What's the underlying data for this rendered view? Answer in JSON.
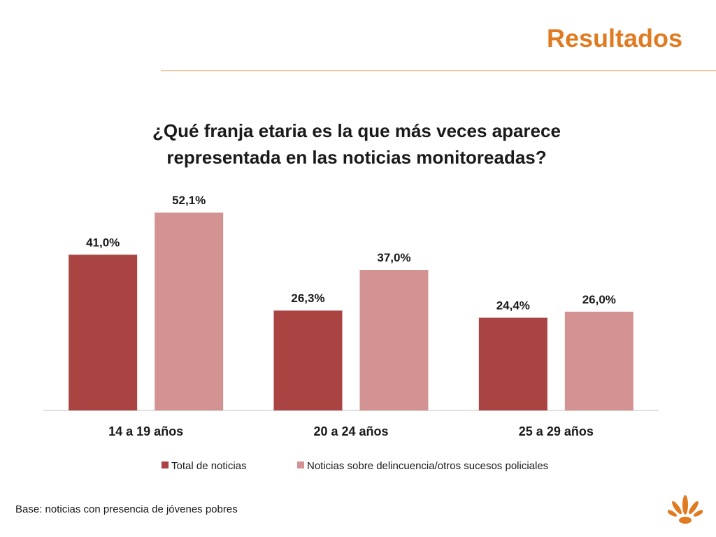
{
  "header": {
    "title": "Resultados"
  },
  "chart_data": {
    "type": "bar",
    "title_lines": [
      "¿Qué franja etaria es la que más veces aparece",
      "representada en las noticias monitoreadas?"
    ],
    "categories": [
      "14 a 19 años",
      "20 a 24 años",
      "25 a 29 años"
    ],
    "series": [
      {
        "name": "Total de noticias",
        "values": [
          41.0,
          26.3,
          24.4
        ],
        "labels": [
          "41,0%",
          "26,3%",
          "24,4%"
        ],
        "color": "#a94442"
      },
      {
        "name": "Noticias sobre delincuencia/otros sucesos policiales",
        "values": [
          52.1,
          37.0,
          26.0
        ],
        "labels": [
          "52,1%",
          "37,0%",
          "26,0%"
        ],
        "color": "#d49393"
      }
    ],
    "ylim": [
      0,
      52.1
    ],
    "grid": false,
    "legend_position": "bottom"
  },
  "footnote": "Base: noticias con presencia de jóvenes pobres",
  "colors": {
    "accent": "#e07b22",
    "rule": "#f0c9a6",
    "axis": "#bfbfbf"
  }
}
